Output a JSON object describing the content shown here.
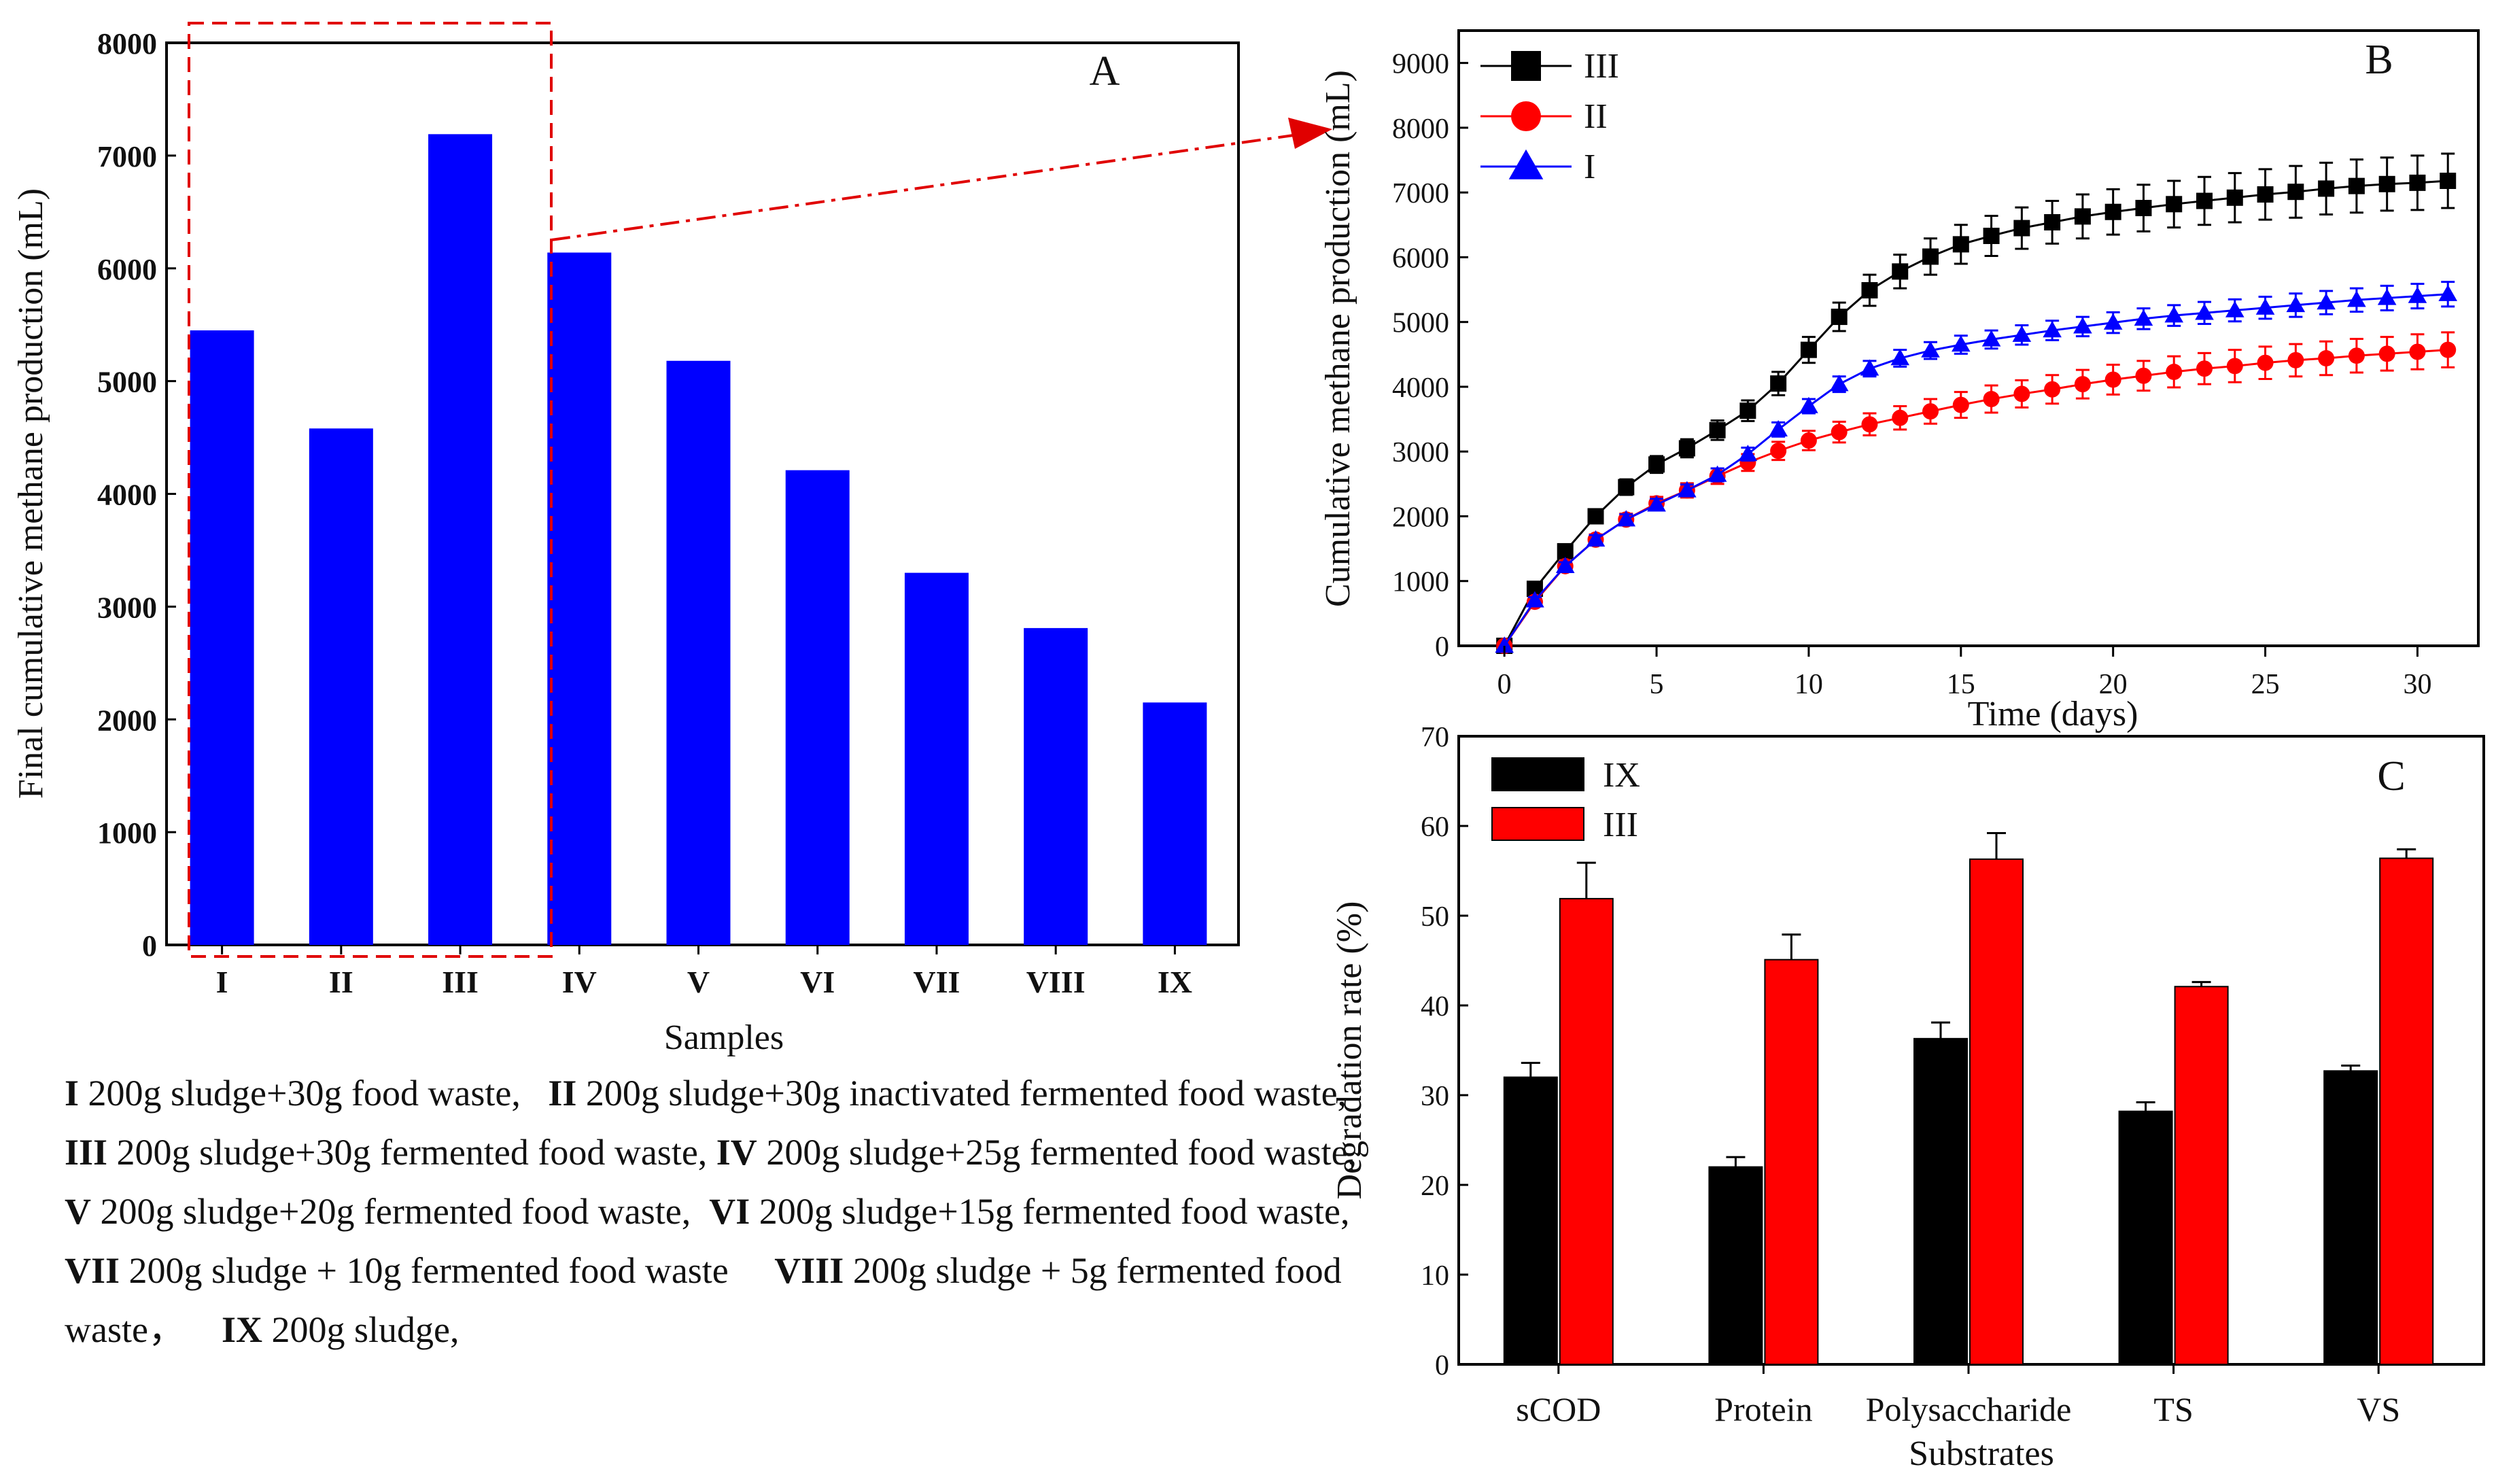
{
  "chart_data": [
    {
      "panel": "A",
      "type": "bar",
      "panel_label": "A",
      "xlabel": "Samples",
      "ylabel": "Final cumulative methane production (mL)",
      "categories": [
        "I",
        "II",
        "III",
        "IV",
        "V",
        "VI",
        "VII",
        "VIII",
        "IX"
      ],
      "values": [
        5450,
        4580,
        7190,
        6140,
        5180,
        4210,
        3300,
        2810,
        2150
      ],
      "ylim": [
        0,
        8000
      ],
      "yticks": [
        0,
        1000,
        2000,
        3000,
        4000,
        5000,
        6000,
        7000,
        8000
      ],
      "color": "#0000ff",
      "grid": false
    },
    {
      "panel": "B",
      "type": "line",
      "panel_label": "B",
      "xlabel": "Time (days)",
      "ylabel": "Cumulative methane production (mL)",
      "xlim": [
        -1.5,
        32
      ],
      "ylim": [
        0,
        9500
      ],
      "xticks": [
        0,
        5,
        10,
        15,
        20,
        25,
        30
      ],
      "yticks": [
        0,
        1000,
        2000,
        3000,
        4000,
        5000,
        6000,
        7000,
        8000,
        9000
      ],
      "x": [
        0,
        1,
        2,
        3,
        4,
        5,
        6,
        7,
        8,
        9,
        10,
        11,
        12,
        13,
        14,
        15,
        16,
        17,
        18,
        19,
        20,
        21,
        22,
        23,
        24,
        25,
        26,
        27,
        28,
        29,
        30,
        31
      ],
      "series": [
        {
          "name": "III",
          "color": "#000000",
          "marker": "square",
          "values": [
            0,
            880,
            1460,
            2000,
            2450,
            2800,
            3050,
            3330,
            3630,
            4050,
            4570,
            5080,
            5490,
            5780,
            6010,
            6200,
            6330,
            6450,
            6540,
            6630,
            6700,
            6760,
            6820,
            6870,
            6920,
            6970,
            7010,
            7060,
            7100,
            7130,
            7150,
            7180
          ],
          "errors": [
            0,
            80,
            90,
            100,
            120,
            130,
            140,
            150,
            160,
            180,
            200,
            220,
            240,
            260,
            280,
            300,
            310,
            320,
            330,
            340,
            350,
            360,
            360,
            370,
            380,
            390,
            400,
            400,
            410,
            410,
            420,
            420
          ]
        },
        {
          "name": "II",
          "color": "#ff0000",
          "marker": "circle",
          "values": [
            0,
            680,
            1230,
            1640,
            1950,
            2200,
            2400,
            2620,
            2830,
            3010,
            3170,
            3300,
            3420,
            3520,
            3620,
            3720,
            3810,
            3890,
            3960,
            4040,
            4110,
            4170,
            4230,
            4280,
            4320,
            4370,
            4410,
            4440,
            4480,
            4510,
            4540,
            4570
          ],
          "errors": [
            0,
            60,
            70,
            80,
            90,
            100,
            110,
            120,
            130,
            140,
            150,
            160,
            170,
            180,
            190,
            200,
            210,
            210,
            220,
            220,
            230,
            230,
            240,
            240,
            250,
            250,
            250,
            260,
            260,
            260,
            270,
            270
          ]
        },
        {
          "name": "I",
          "color": "#0000ff",
          "marker": "triangle",
          "values": [
            0,
            700,
            1230,
            1640,
            1950,
            2180,
            2400,
            2640,
            2960,
            3340,
            3700,
            4040,
            4280,
            4440,
            4560,
            4650,
            4730,
            4800,
            4870,
            4930,
            4990,
            5050,
            5100,
            5140,
            5180,
            5220,
            5260,
            5300,
            5340,
            5370,
            5400,
            5430
          ],
          "errors": [
            0,
            50,
            60,
            70,
            80,
            90,
            90,
            100,
            100,
            110,
            110,
            120,
            120,
            130,
            130,
            140,
            140,
            150,
            150,
            150,
            160,
            160,
            160,
            170,
            170,
            170,
            180,
            180,
            180,
            190,
            190,
            190
          ]
        }
      ],
      "legend_position": "top-left",
      "grid": false
    },
    {
      "panel": "C",
      "type": "bar",
      "panel_label": "C",
      "xlabel": "Substrates",
      "ylabel": "Degradation rate (%)",
      "categories": [
        "sCOD",
        "Protein",
        "Polysaccharide",
        "TS",
        "VS"
      ],
      "ylim": [
        0,
        70
      ],
      "yticks": [
        0,
        10,
        20,
        30,
        40,
        50,
        60,
        70
      ],
      "series": [
        {
          "name": "IX",
          "color": "#000000",
          "values": [
            32.0,
            22.0,
            36.3,
            28.2,
            32.7
          ],
          "errors": [
            1.6,
            1.1,
            1.8,
            1.0,
            0.6
          ]
        },
        {
          "name": "III",
          "color": "#ff0000",
          "values": [
            51.9,
            45.1,
            56.3,
            42.1,
            56.4
          ],
          "errors": [
            4.0,
            2.8,
            2.9,
            0.5,
            1.0
          ]
        }
      ],
      "legend_position": "top-left",
      "grid": false
    }
  ],
  "caption": [
    {
      "label": "I",
      "text": " 200g sludge+30g food waste,"
    },
    {
      "label": "II",
      "text": " 200g sludge+30g inactivated fermented food waste,"
    },
    {
      "label": "III",
      "text": " 200g sludge+30g fermented food waste,"
    },
    {
      "label": "IV",
      "text": " 200g sludge+25g fermented food waste,"
    },
    {
      "label": "V",
      "text": " 200g sludge+20g fermented food waste,"
    },
    {
      "label": "VI",
      "text": " 200g sludge+15g fermented food waste,"
    },
    {
      "label": "VII",
      "text": " 200g sludge + 10g fermented food waste"
    },
    {
      "label": "VIII",
      "text": " 200g sludge + 5g fermented food waste，"
    },
    {
      "label": "IX",
      "text": " 200g sludge,"
    }
  ]
}
